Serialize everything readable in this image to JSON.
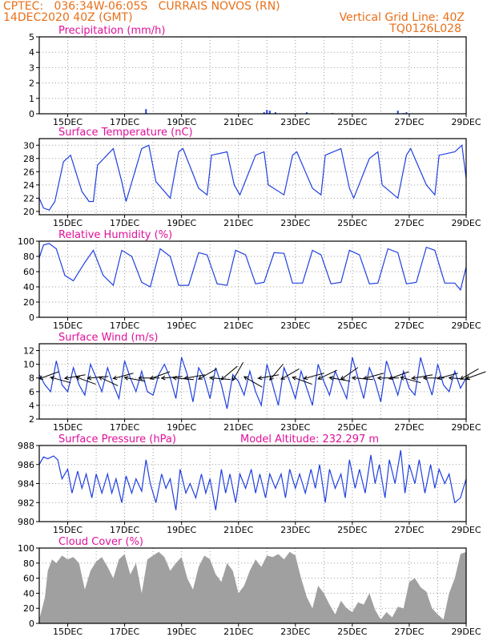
{
  "header": {
    "line1": "CPTEC:   036:34W-06:05S   CURRAIS NOVOS (RN)",
    "line2": "14DEC2020 40Z (GMT)",
    "grid_note": "Vertical Grid Line: 40Z",
    "code": "TQ0126L028"
  },
  "colors": {
    "header": "#e8701a",
    "panel_title": "#e0109a",
    "line": "#2040e0",
    "cloud_fill": "#a0a0a0",
    "grid": "#9a9a9a"
  },
  "chart_data": [
    {
      "id": "precip",
      "type": "bar",
      "title": "Precipitation (mm/h)",
      "ylim": [
        0,
        5
      ],
      "yticks": [
        0,
        1,
        2,
        3,
        4,
        5
      ],
      "xlim": [
        14.0,
        29.0
      ],
      "xticks": [
        15,
        17,
        19,
        21,
        23,
        25,
        27,
        29
      ],
      "xtick_labels": [
        "15DEC",
        "17DEC",
        "19DEC",
        "21DEC",
        "23DEC",
        "25DEC",
        "27DEC",
        "29DEC"
      ],
      "x": [
        17.75,
        21.9,
        22.0,
        22.1,
        22.3,
        23.4,
        24.3,
        26.6,
        26.8,
        26.9
      ],
      "values": [
        0.3,
        0.1,
        0.25,
        0.2,
        0.1,
        0.1,
        0.05,
        0.2,
        0.05,
        0.1
      ],
      "grid": true
    },
    {
      "id": "temp",
      "type": "line",
      "title": "Surface Temperature (nC)",
      "ylim": [
        19.5,
        31
      ],
      "yticks": [
        20,
        22,
        24,
        26,
        28,
        30
      ],
      "xlim": [
        14.0,
        29.0
      ],
      "xticks": [
        15,
        17,
        19,
        21,
        23,
        25,
        27,
        29
      ],
      "xtick_labels": [
        "15DEC",
        "17DEC",
        "19DEC",
        "21DEC",
        "23DEC",
        "25DEC",
        "27DEC",
        "29DEC"
      ],
      "grid": true,
      "x": [
        14.0,
        14.15,
        14.35,
        14.55,
        14.85,
        15.1,
        15.5,
        15.75,
        15.9,
        16.05,
        16.6,
        16.9,
        17.05,
        17.6,
        17.85,
        18.1,
        18.6,
        18.9,
        19.05,
        19.6,
        19.9,
        20.05,
        20.6,
        20.85,
        21.05,
        21.6,
        21.9,
        22.05,
        22.6,
        22.9,
        23.05,
        23.6,
        23.9,
        24.05,
        24.6,
        24.9,
        25.05,
        25.6,
        25.9,
        26.05,
        26.6,
        26.9,
        27.05,
        27.6,
        27.9,
        28.05,
        28.6,
        28.85,
        29.0
      ],
      "values": [
        22.0,
        20.5,
        20.2,
        21.5,
        27.5,
        28.5,
        23.0,
        21.5,
        21.5,
        27.0,
        29.5,
        24.5,
        21.5,
        29.5,
        30.0,
        24.5,
        22.0,
        29.0,
        29.5,
        23.5,
        22.5,
        28.5,
        29.0,
        24.0,
        22.5,
        28.5,
        29.0,
        24.0,
        22.5,
        28.5,
        29.0,
        23.5,
        22.5,
        28.5,
        29.5,
        23.5,
        22.0,
        28.0,
        29.0,
        24.0,
        22.0,
        28.5,
        29.5,
        24.0,
        22.5,
        28.5,
        29.0,
        30.0,
        25.0
      ]
    },
    {
      "id": "rh",
      "type": "line",
      "title": "Relative Humidity (%)",
      "ylim": [
        0,
        100
      ],
      "yticks": [
        0,
        20,
        40,
        60,
        80,
        100
      ],
      "xlim": [
        14.0,
        29.0
      ],
      "xticks": [
        15,
        17,
        19,
        21,
        23,
        25,
        27,
        29
      ],
      "xtick_labels": [
        "15DEC",
        "17DEC",
        "19DEC",
        "21DEC",
        "23DEC",
        "25DEC",
        "27DEC",
        "29DEC"
      ],
      "grid": true,
      "x": [
        14.0,
        14.15,
        14.35,
        14.6,
        14.9,
        15.2,
        15.6,
        15.9,
        16.25,
        16.6,
        16.9,
        17.25,
        17.6,
        17.9,
        18.25,
        18.6,
        18.9,
        19.25,
        19.6,
        19.9,
        20.25,
        20.6,
        20.9,
        21.25,
        21.6,
        21.9,
        22.25,
        22.6,
        22.9,
        23.25,
        23.6,
        23.9,
        24.25,
        24.6,
        24.9,
        25.25,
        25.6,
        25.9,
        26.25,
        26.6,
        26.9,
        27.25,
        27.6,
        27.9,
        28.25,
        28.6,
        28.8,
        29.0
      ],
      "values": [
        78,
        95,
        97,
        90,
        55,
        48,
        72,
        88,
        55,
        42,
        88,
        80,
        46,
        40,
        90,
        80,
        42,
        42,
        85,
        82,
        44,
        42,
        88,
        82,
        44,
        46,
        85,
        84,
        45,
        45,
        88,
        82,
        44,
        46,
        88,
        82,
        44,
        45,
        90,
        85,
        44,
        46,
        92,
        88,
        45,
        45,
        36,
        66
      ]
    },
    {
      "id": "wind",
      "type": "line",
      "title": "Surface Wind (m/s)",
      "ylim": [
        2,
        13
      ],
      "yticks": [
        2,
        4,
        6,
        8,
        10,
        12
      ],
      "xlim": [
        14.0,
        29.0
      ],
      "xticks": [
        15,
        17,
        19,
        21,
        23,
        25,
        27,
        29
      ],
      "xtick_labels": [
        "15DEC",
        "17DEC",
        "19DEC",
        "21DEC",
        "23DEC",
        "25DEC",
        "27DEC",
        "29DEC"
      ],
      "grid": true,
      "x": [
        14.0,
        14.2,
        14.4,
        14.6,
        14.8,
        15.0,
        15.2,
        15.4,
        15.6,
        15.8,
        16.0,
        16.2,
        16.4,
        16.6,
        16.8,
        17.0,
        17.2,
        17.4,
        17.6,
        17.8,
        18.0,
        18.2,
        18.4,
        18.6,
        18.8,
        19.0,
        19.2,
        19.4,
        19.6,
        19.8,
        20.0,
        20.2,
        20.4,
        20.6,
        20.8,
        21.0,
        21.2,
        21.4,
        21.6,
        21.8,
        22.0,
        22.2,
        22.4,
        22.6,
        22.8,
        23.0,
        23.2,
        23.4,
        23.6,
        23.8,
        24.0,
        24.2,
        24.4,
        24.6,
        24.8,
        25.0,
        25.2,
        25.4,
        25.6,
        25.8,
        26.0,
        26.2,
        26.4,
        26.6,
        26.8,
        27.0,
        27.2,
        27.4,
        27.6,
        27.8,
        28.0,
        28.2,
        28.4,
        28.6,
        28.8,
        29.0
      ],
      "values": [
        8.5,
        7.0,
        6.0,
        10.5,
        7.0,
        6.0,
        9.5,
        7.0,
        5.5,
        10.0,
        8.0,
        6.0,
        9.5,
        7.0,
        5.0,
        10.5,
        8.0,
        6.0,
        9.0,
        6.0,
        5.5,
        8.5,
        10.0,
        8.0,
        5.0,
        11.0,
        8.5,
        4.5,
        9.5,
        8.0,
        5.0,
        9.5,
        7.0,
        3.5,
        8.5,
        7.5,
        5.5,
        9.0,
        6.0,
        4.0,
        10.0,
        7.0,
        4.0,
        9.5,
        7.5,
        5.0,
        9.0,
        6.5,
        4.0,
        10.0,
        7.5,
        5.5,
        9.0,
        7.0,
        5.0,
        11.0,
        8.0,
        5.0,
        9.5,
        7.5,
        4.5,
        10.5,
        8.0,
        5.5,
        9.0,
        6.5,
        5.5,
        11.0,
        8.0,
        5.5,
        10.0,
        7.0,
        6.0,
        9.0,
        6.5,
        8.0
      ],
      "vectors_at": [
        14.0,
        14.4,
        14.9,
        15.3,
        15.7,
        16.1,
        16.6,
        17.0,
        17.5,
        17.9,
        18.3,
        18.7,
        19.1,
        19.6,
        20.0,
        20.4,
        20.8,
        21.2,
        21.7,
        22.1,
        22.5,
        22.9,
        23.3,
        23.8,
        24.2,
        24.6,
        25.0,
        25.4,
        25.9,
        26.3,
        26.7,
        27.1,
        27.5,
        28.0,
        28.4,
        28.8,
        29.0
      ],
      "vector_dirs": [
        20,
        -15,
        10,
        -20,
        5,
        -25,
        15,
        -10,
        0,
        20,
        5,
        -5,
        10,
        30,
        -5,
        40,
        60,
        -30,
        10,
        50,
        30,
        -20,
        15,
        25,
        -10,
        35,
        -5,
        15,
        0,
        20,
        -15,
        10,
        0,
        15,
        -5,
        30,
        20
      ]
    },
    {
      "id": "pressure",
      "type": "line",
      "title": "Surface Pressure (hPa)",
      "annotation": "Model Altitude: 232.297 m",
      "ylim": [
        980,
        988
      ],
      "yticks": [
        980,
        982,
        984,
        986,
        988
      ],
      "xlim": [
        14.0,
        29.0
      ],
      "xticks": [
        15,
        17,
        19,
        21,
        23,
        25,
        27,
        29
      ],
      "xtick_labels": [
        "15DEC",
        "17DEC",
        "19DEC",
        "21DEC",
        "23DEC",
        "25DEC",
        "27DEC",
        "29DEC"
      ],
      "grid": true,
      "x": [
        14.0,
        14.15,
        14.3,
        14.5,
        14.65,
        14.8,
        15.0,
        15.15,
        15.35,
        15.5,
        15.65,
        15.85,
        16.0,
        16.2,
        16.4,
        16.55,
        16.7,
        16.9,
        17.05,
        17.25,
        17.4,
        17.6,
        17.75,
        17.9,
        18.1,
        18.3,
        18.45,
        18.6,
        18.8,
        18.95,
        19.15,
        19.3,
        19.5,
        19.7,
        19.85,
        20.0,
        20.2,
        20.4,
        20.55,
        20.7,
        20.9,
        21.05,
        21.25,
        21.45,
        21.6,
        21.75,
        21.95,
        22.1,
        22.3,
        22.5,
        22.65,
        22.8,
        23.0,
        23.15,
        23.35,
        23.55,
        23.7,
        23.85,
        24.05,
        24.2,
        24.4,
        24.6,
        24.75,
        24.9,
        25.1,
        25.25,
        25.45,
        25.65,
        25.8,
        25.95,
        26.15,
        26.3,
        26.5,
        26.7,
        26.85,
        27.0,
        27.2,
        27.35,
        27.55,
        27.75,
        27.9,
        28.05,
        28.25,
        28.4,
        28.6,
        28.8,
        29.0
      ],
      "values": [
        986.0,
        986.8,
        986.6,
        986.9,
        986.5,
        984.5,
        985.5,
        983.0,
        985.3,
        983.5,
        985.0,
        982.5,
        985.0,
        983.0,
        985.0,
        983.0,
        984.5,
        982.0,
        984.8,
        983.0,
        984.5,
        983.2,
        986.5,
        984.0,
        982.0,
        985.0,
        983.5,
        984.5,
        981.2,
        985.5,
        983.0,
        984.0,
        982.5,
        985.0,
        983.0,
        984.5,
        981.2,
        985.5,
        983.0,
        985.0,
        982.0,
        985.0,
        983.5,
        985.5,
        983.0,
        985.0,
        982.5,
        985.0,
        983.5,
        985.0,
        982.5,
        985.5,
        983.5,
        985.0,
        983.0,
        985.5,
        983.5,
        986.0,
        982.0,
        985.5,
        983.5,
        985.0,
        982.5,
        986.5,
        983.5,
        985.5,
        983.0,
        987.0,
        984.0,
        986.0,
        982.5,
        986.5,
        984.0,
        987.5,
        983.0,
        986.0,
        984.0,
        986.5,
        983.0,
        986.0,
        983.5,
        985.5,
        984.0,
        985.0,
        982.0,
        982.5,
        984.5
      ]
    },
    {
      "id": "cloud",
      "type": "area",
      "title": "Cloud Cover (%)",
      "ylim": [
        0,
        100
      ],
      "yticks": [
        0,
        20,
        40,
        60,
        80,
        100
      ],
      "xlim": [
        14.0,
        29.0
      ],
      "xticks": [
        15,
        17,
        19,
        21,
        23,
        25,
        27,
        29
      ],
      "xtick_labels": [
        "15DEC",
        "17DEC",
        "19DEC",
        "21DEC",
        "23DEC",
        "25DEC",
        "27DEC",
        "29DEC"
      ],
      "grid": true,
      "x": [
        14.0,
        14.1,
        14.2,
        14.3,
        14.45,
        14.6,
        14.8,
        15.0,
        15.2,
        15.4,
        15.6,
        15.8,
        16.0,
        16.2,
        16.4,
        16.6,
        16.8,
        17.0,
        17.2,
        17.4,
        17.6,
        17.8,
        18.0,
        18.2,
        18.4,
        18.6,
        18.8,
        19.0,
        19.2,
        19.4,
        19.6,
        19.8,
        20.0,
        20.2,
        20.4,
        20.6,
        20.8,
        21.0,
        21.2,
        21.4,
        21.6,
        21.8,
        22.0,
        22.2,
        22.4,
        22.6,
        22.8,
        23.0,
        23.2,
        23.4,
        23.6,
        23.8,
        24.0,
        24.2,
        24.4,
        24.6,
        24.8,
        25.0,
        25.2,
        25.4,
        25.6,
        25.8,
        26.0,
        26.2,
        26.4,
        26.6,
        26.8,
        27.0,
        27.2,
        27.4,
        27.6,
        27.8,
        28.0,
        28.2,
        28.4,
        28.6,
        28.8,
        29.0
      ],
      "values": [
        5,
        20,
        35,
        70,
        85,
        80,
        90,
        85,
        88,
        80,
        45,
        70,
        82,
        88,
        75,
        60,
        85,
        92,
        65,
        80,
        40,
        85,
        90,
        95,
        88,
        70,
        80,
        88,
        60,
        45,
        75,
        90,
        85,
        65,
        55,
        80,
        70,
        40,
        50,
        70,
        85,
        75,
        90,
        88,
        92,
        85,
        95,
        90,
        60,
        35,
        20,
        50,
        40,
        25,
        12,
        30,
        20,
        15,
        28,
        25,
        40,
        18,
        5,
        15,
        8,
        22,
        20,
        55,
        60,
        48,
        42,
        20,
        12,
        5,
        40,
        60,
        92,
        95
      ]
    }
  ]
}
